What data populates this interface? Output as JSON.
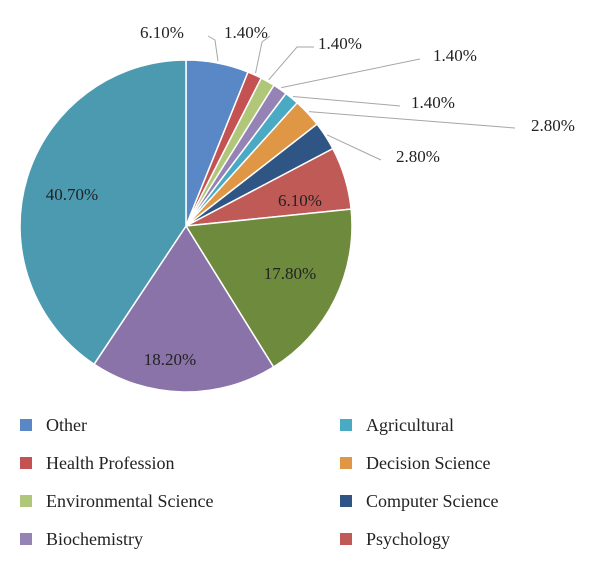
{
  "chart_data": {
    "type": "pie",
    "slices": [
      {
        "label": "",
        "value": 6.1,
        "text": "6.10%",
        "color": "#5a87c5"
      },
      {
        "label": "",
        "value": 1.4,
        "text": "1.40%",
        "color": "#c55252"
      },
      {
        "label": "",
        "value": 1.4,
        "text": "1.40%",
        "color": "#b0c779"
      },
      {
        "label": "",
        "value": 1.4,
        "text": "1.40%",
        "color": "#9683b5"
      },
      {
        "label": "",
        "value": 1.4,
        "text": "1.40%",
        "color": "#4aaac3"
      },
      {
        "label": "",
        "value": 2.8,
        "text": "2.80%",
        "color": "#e09745"
      },
      {
        "label": "",
        "value": 2.8,
        "text": "2.80%",
        "color": "#2e5584"
      },
      {
        "label": "",
        "value": 6.1,
        "text": "6.10%",
        "color": "#c05a57"
      },
      {
        "label": "",
        "value": 17.8,
        "text": "17.80%",
        "color": "#6e8a3c"
      },
      {
        "label": "",
        "value": 18.2,
        "text": "18.20%",
        "color": "#8a73a8"
      },
      {
        "label": "",
        "value": 40.7,
        "text": "40.70%",
        "color": "#4b9ab0"
      }
    ],
    "legend": [
      {
        "label": "Other",
        "color": "#5a87c5"
      },
      {
        "label": "Agricultural",
        "color": "#4aaac3"
      },
      {
        "label": "Health Profession",
        "color": "#c55252"
      },
      {
        "label": "Decision Science",
        "color": "#e09745"
      },
      {
        "label": "Environmental Science",
        "color": "#b0c779"
      },
      {
        "label": "Computer Science",
        "color": "#2e5584"
      },
      {
        "label": "Biochemistry",
        "color": "#9683b5"
      },
      {
        "label": "Psychology",
        "color": "#c05a57"
      }
    ],
    "legend_position": "bottom"
  }
}
